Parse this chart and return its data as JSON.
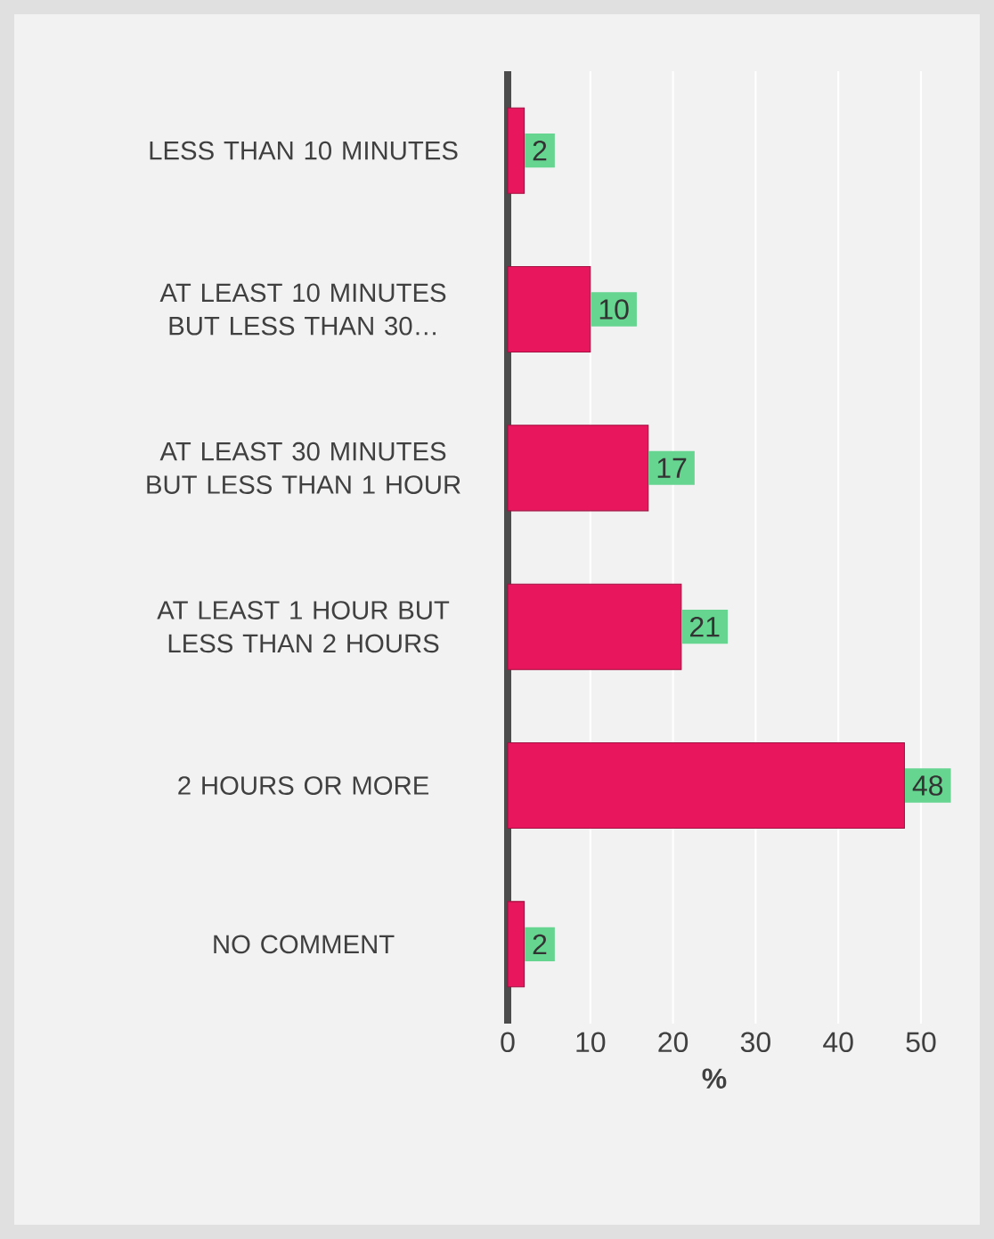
{
  "chart_data": {
    "type": "bar",
    "orientation": "horizontal",
    "xlabel": "%",
    "categories": [
      "LESS THAN 10 MINUTES",
      "AT LEAST 10 MINUTES BUT LESS THAN 30…",
      "AT LEAST 30 MINUTES BUT LESS THAN 1 HOUR",
      "AT LEAST 1 HOUR BUT LESS THAN 2 HOURS",
      "2 HOURS OR MORE",
      "NO COMMENT"
    ],
    "values": [
      2,
      10,
      17,
      21,
      48,
      2
    ],
    "color": "#e8175d",
    "xlim": [
      0,
      50
    ],
    "xticks": [
      0,
      10,
      20,
      30,
      40,
      50
    ],
    "grid": "x",
    "data_labels": true
  }
}
